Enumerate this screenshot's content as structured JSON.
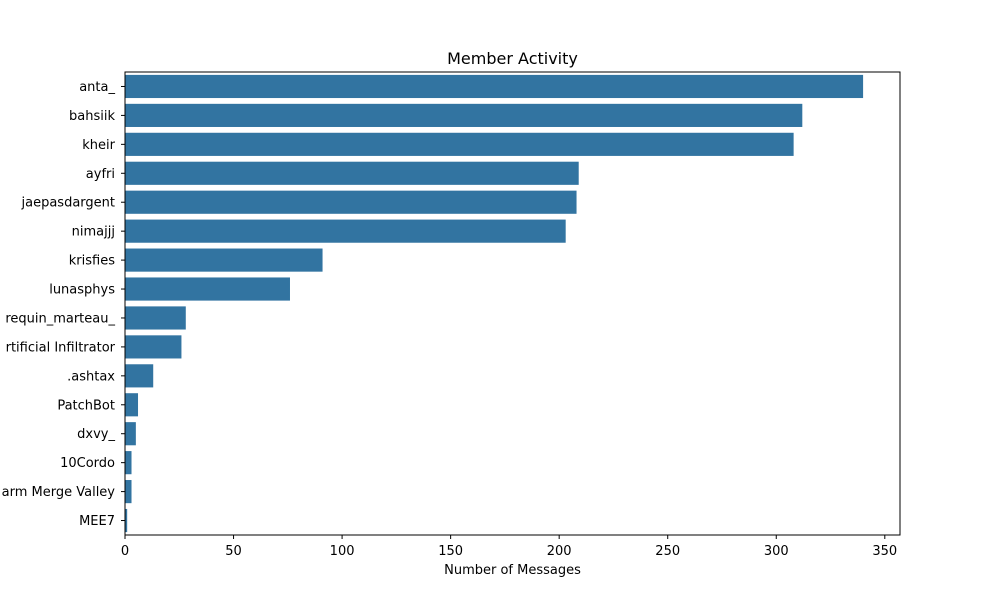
{
  "chart_data": {
    "type": "bar",
    "orientation": "horizontal",
    "title": "Member Activity",
    "xlabel": "Number of Messages",
    "ylabel": "",
    "categories": [
      "anta_",
      "bahsiik",
      "kheir",
      "ayfri",
      "jaepasdargent",
      "nimajjj",
      "krisfies",
      "lunasphys",
      "requin_marteau_",
      "rtificial Infiltrator",
      ".ashtax",
      "PatchBot",
      "dxvy_",
      "10Cordo",
      "arm Merge Valley",
      "MEE7"
    ],
    "values": [
      340,
      312,
      308,
      209,
      208,
      203,
      91,
      76,
      28,
      26,
      13,
      6,
      5,
      3,
      3,
      1
    ],
    "xlim": [
      0,
      357
    ],
    "xticks": [
      0,
      50,
      100,
      150,
      200,
      250,
      300,
      350
    ],
    "grid": false,
    "legend": "none",
    "bar_color": "#3274a1"
  }
}
